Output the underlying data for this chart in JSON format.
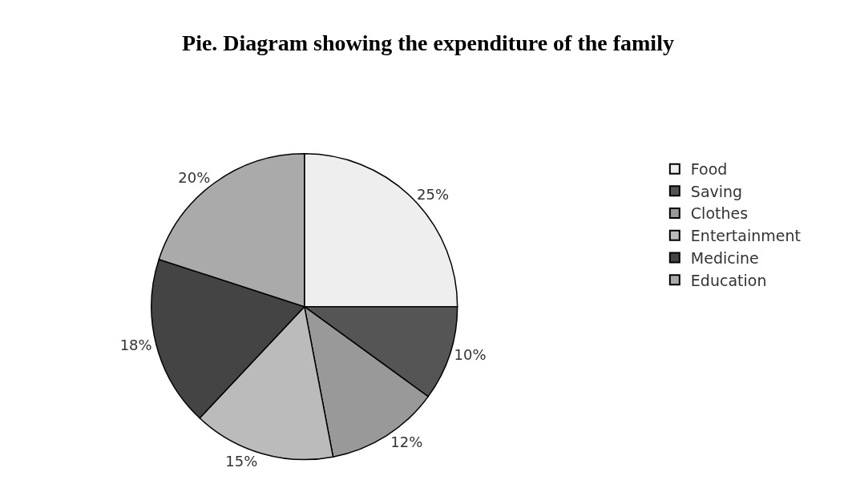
{
  "chart_data": {
    "type": "pie",
    "title": "Pie. Diagram showing the expenditure of the family",
    "categories": [
      "Food",
      "Saving",
      "Clothes",
      "Entertainment",
      "Medicine",
      "Education"
    ],
    "values": [
      25,
      10,
      12,
      15,
      18,
      20
    ],
    "value_labels": [
      "25%",
      "10%",
      "12%",
      "15%",
      "18%",
      "20%"
    ],
    "colors": [
      "#eeeeee",
      "#555555",
      "#999999",
      "#bbbbbb",
      "#444444",
      "#aaaaaa"
    ],
    "legend": "right"
  }
}
